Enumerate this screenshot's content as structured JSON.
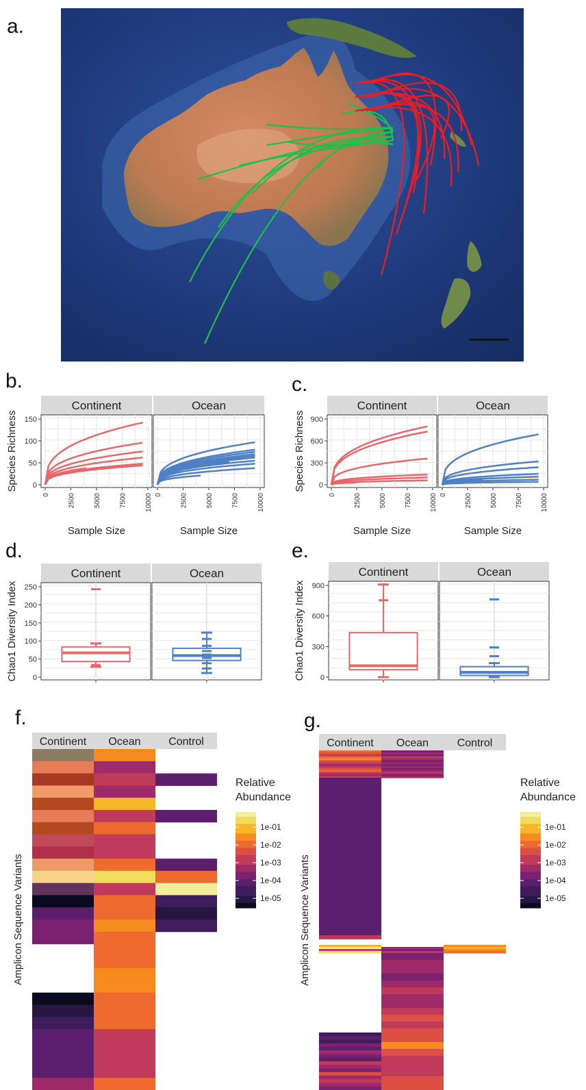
{
  "panel_labels": {
    "a": "a.",
    "b": "b.",
    "c": "c.",
    "d": "d.",
    "e": "e.",
    "f": "f.",
    "g": "g."
  },
  "colors": {
    "continent": "#e8676b",
    "ocean": "#4f7fc4",
    "ocean_map": "#1e3a78",
    "land": "#c77a55",
    "track_continent": "#1fbf4a",
    "track_ocean": "#ee1c24",
    "strip": "#d9d9d9",
    "grid": "#e6e6e6"
  },
  "map": {
    "tracks_green_count": 12,
    "tracks_red_count": 14
  },
  "chart_data": [
    {
      "id": "b",
      "type": "line",
      "ylabel": "Species Richness",
      "xlabel": "Sample Size",
      "facets": [
        "Continent",
        "Ocean"
      ],
      "xlim": [
        0,
        10000
      ],
      "ylim": [
        0,
        150
      ],
      "xticks": [
        "0",
        "2500",
        "5000",
        "7500",
        "10000"
      ],
      "yticks": [
        "0",
        "50",
        "100",
        "150"
      ],
      "series": [
        {
          "facet": "Continent",
          "curves": [
            [
              9500,
              142
            ],
            [
              9500,
              96
            ],
            [
              9500,
              76
            ],
            [
              9500,
              62
            ],
            [
              9500,
              48
            ],
            [
              9500,
              44
            ],
            [
              4000,
              38
            ],
            [
              3000,
              34
            ]
          ]
        },
        {
          "facet": "Ocean",
          "curves": [
            [
              9500,
              97
            ],
            [
              9500,
              80
            ],
            [
              9500,
              75
            ],
            [
              9500,
              70
            ],
            [
              9500,
              66
            ],
            [
              9500,
              62
            ],
            [
              9500,
              55
            ],
            [
              9500,
              48
            ],
            [
              9500,
              38
            ],
            [
              4200,
              21
            ],
            [
              8000,
              60
            ],
            [
              7000,
              52
            ]
          ]
        }
      ]
    },
    {
      "id": "c",
      "type": "line",
      "ylabel": "Species Richness",
      "xlabel": "Sample Size",
      "facets": [
        "Continent",
        "Ocean"
      ],
      "xlim": [
        0,
        10000
      ],
      "ylim": [
        0,
        900
      ],
      "xticks": [
        "0",
        "2500",
        "5000",
        "7500",
        "10000"
      ],
      "yticks": [
        "0",
        "300",
        "600",
        "900"
      ],
      "series": [
        {
          "facet": "Continent",
          "curves": [
            [
              9500,
              800
            ],
            [
              9500,
              730
            ],
            [
              9500,
              360
            ],
            [
              9500,
              140
            ],
            [
              9500,
              100
            ],
            [
              9500,
              60
            ],
            [
              2500,
              30
            ]
          ]
        },
        {
          "facet": "Ocean",
          "curves": [
            [
              9500,
              690
            ],
            [
              9500,
              320
            ],
            [
              9500,
              240
            ],
            [
              9500,
              150
            ],
            [
              9500,
              110
            ],
            [
              9500,
              70
            ],
            [
              9500,
              40
            ],
            [
              5000,
              90
            ],
            [
              4000,
              60
            ]
          ]
        }
      ]
    },
    {
      "id": "d",
      "type": "box",
      "ylabel": "Chao1 Diversity Index",
      "facets": [
        "Continent",
        "Ocean"
      ],
      "ylim": [
        0,
        260
      ],
      "yticks": [
        "0",
        "50",
        "100",
        "150",
        "200",
        "250"
      ],
      "boxes": [
        {
          "facet": "Continent",
          "min": 30,
          "q1": 45,
          "median": 70,
          "q3": 87,
          "max": 97,
          "outliers": [
            253,
            35
          ]
        },
        {
          "facet": "Ocean",
          "min": 12,
          "q1": 48,
          "median": 62,
          "q3": 83,
          "max": 128,
          "outliers": [
            110,
            90,
            75,
            65,
            55,
            40,
            25
          ]
        }
      ]
    },
    {
      "id": "e",
      "type": "box",
      "ylabel": "Chao1 Diversity Index",
      "facets": [
        "Continent",
        "Ocean"
      ],
      "ylim": [
        0,
        1050
      ],
      "yticks": [
        "0",
        "300",
        "600",
        "900"
      ],
      "boxes": [
        {
          "facet": "Continent",
          "min": 0,
          "q1": 85,
          "median": 130,
          "q3": 510,
          "max": 1060,
          "outliers": [
            880
          ]
        },
        {
          "facet": "Ocean",
          "min": 0,
          "q1": 20,
          "median": 55,
          "q3": 120,
          "max": 160,
          "outliers": [
            890,
            340,
            240
          ]
        }
      ]
    },
    {
      "id": "f",
      "type": "heatmap",
      "ylabel": "Amplicon Sequence Variants",
      "columns": [
        "Continent",
        "Ocean",
        "Control"
      ],
      "legend_title": "Relative Abundance",
      "legend_ticks": [
        "1e-01",
        "1e-02",
        "1e-03",
        "1e-04",
        "1e-05"
      ]
    },
    {
      "id": "g",
      "type": "heatmap",
      "ylabel": "Amplicon Sequence Variants",
      "columns": [
        "Continent",
        "Ocean",
        "Control"
      ],
      "legend_title": "Relative Abundance",
      "legend_ticks": [
        "1e-01",
        "1e-02",
        "1e-03",
        "1e-04",
        "1e-05"
      ]
    }
  ]
}
